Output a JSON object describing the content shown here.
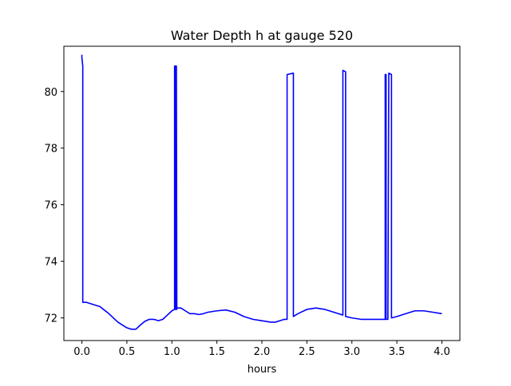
{
  "chart_data": {
    "type": "line",
    "title": "Water Depth h at gauge 520",
    "xlabel": "hours",
    "ylabel": "",
    "xlim": [
      -0.2,
      4.2
    ],
    "ylim": [
      71.2,
      81.6
    ],
    "x_ticks": [
      0.0,
      0.5,
      1.0,
      1.5,
      2.0,
      2.5,
      3.0,
      3.5,
      4.0
    ],
    "x_tick_labels": [
      "0.0",
      "0.5",
      "1.0",
      "1.5",
      "2.0",
      "2.5",
      "3.0",
      "3.5",
      "4.0"
    ],
    "y_ticks": [
      72,
      74,
      76,
      78,
      80
    ],
    "y_tick_labels": [
      "72",
      "74",
      "76",
      "78",
      "80"
    ],
    "grid": false,
    "legend": "none",
    "line_color": "#0000ff",
    "series": [
      {
        "x": [
          0.0,
          0.0,
          0.01,
          0.01,
          0.05,
          0.1,
          0.2,
          0.3,
          0.4,
          0.5,
          0.55,
          0.6,
          0.65,
          0.7,
          0.75,
          0.8,
          0.85,
          0.9,
          0.95,
          1.0,
          1.03,
          1.03,
          1.035,
          1.04,
          1.045,
          1.045,
          1.05,
          1.055,
          1.055,
          1.1,
          1.15,
          1.2,
          1.25,
          1.3,
          1.35,
          1.4,
          1.5,
          1.6,
          1.7,
          1.8,
          1.9,
          2.0,
          2.1,
          2.15,
          2.2,
          2.25,
          2.28,
          2.28,
          2.35,
          2.35,
          2.4,
          2.5,
          2.6,
          2.7,
          2.8,
          2.9,
          2.9,
          2.93,
          2.93,
          3.0,
          3.1,
          3.2,
          3.3,
          3.35,
          3.37,
          3.37,
          3.38,
          3.38,
          3.4,
          3.41,
          3.41,
          3.44,
          3.44,
          3.5,
          3.6,
          3.7,
          3.8,
          3.9,
          4.0
        ],
        "y": [
          81.3,
          81.2,
          80.9,
          72.55,
          72.55,
          72.5,
          72.4,
          72.15,
          71.85,
          71.65,
          71.6,
          71.6,
          71.75,
          71.88,
          71.95,
          71.95,
          71.9,
          71.95,
          72.1,
          72.25,
          72.3,
          80.9,
          80.9,
          72.3,
          72.3,
          80.9,
          80.9,
          72.3,
          72.35,
          72.35,
          72.25,
          72.15,
          72.15,
          72.12,
          72.15,
          72.2,
          72.25,
          72.28,
          72.2,
          72.05,
          71.95,
          71.9,
          71.85,
          71.85,
          71.9,
          71.95,
          71.95,
          80.6,
          80.65,
          72.05,
          72.15,
          72.3,
          72.35,
          72.3,
          72.2,
          72.1,
          80.75,
          80.7,
          72.05,
          72.0,
          71.95,
          71.95,
          71.95,
          71.95,
          71.95,
          80.6,
          80.6,
          71.95,
          71.95,
          80.6,
          80.65,
          80.6,
          72.0,
          72.05,
          72.15,
          72.25,
          72.25,
          72.2,
          72.15
        ]
      }
    ]
  }
}
